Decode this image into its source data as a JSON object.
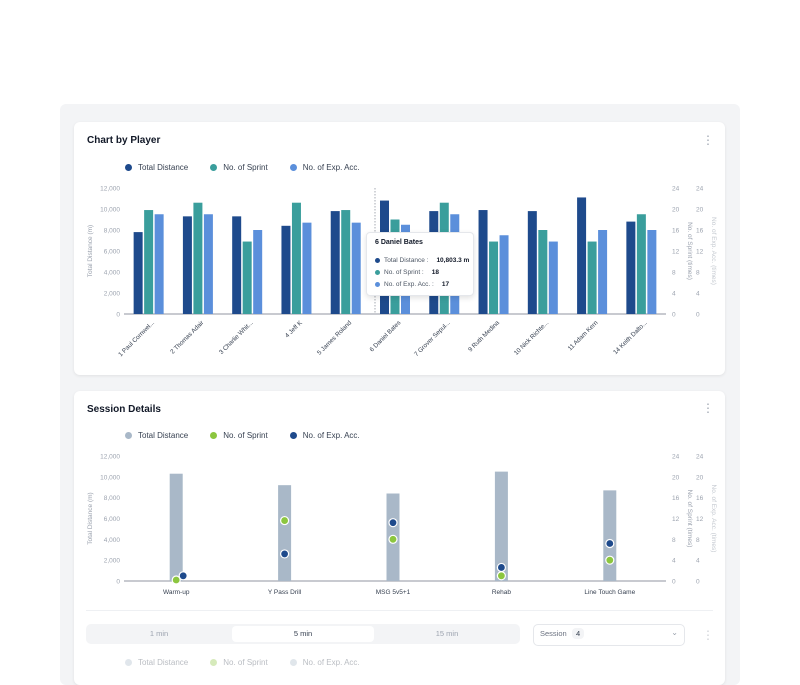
{
  "chart_data": [
    {
      "type": "bar",
      "title": "Chart by Player",
      "legend_position": "top-left",
      "categories": [
        "1 Paul Cornwel...",
        "2 Thomas Adair",
        "3 Charlie Whit...",
        "4 Jeff K",
        "5 James Roland",
        "6 Daniel Bates",
        "7 Grover Sepul...",
        "9 Ruth Medina",
        "10 Nick Richte...",
        "11 Adam Kern",
        "14 Keith Dalto..."
      ],
      "series": [
        {
          "name": "Total Distance",
          "axis": "left",
          "color": "#1e4a8c",
          "values": [
            7800,
            9300,
            9300,
            8400,
            9800,
            10803.3,
            9800,
            9900,
            9800,
            11100,
            8800
          ]
        },
        {
          "name": "No. of Sprint",
          "axis": "right",
          "color": "#3a9e9c",
          "values": [
            19.8,
            21.2,
            13.8,
            21.2,
            19.8,
            18,
            21.2,
            13.8,
            16,
            13.8,
            19
          ]
        },
        {
          "name": "No. of Exp. Acc.",
          "axis": "right",
          "color": "#5b8fdb",
          "values": [
            19,
            19,
            16,
            17.4,
            17.4,
            17,
            19,
            15,
            13.8,
            16,
            16
          ]
        }
      ],
      "ylabel": "Total Distance (m)",
      "y2label": "No. of Sprint (times)",
      "y3label": "No. of Exp. Acc. (times)",
      "ylim": [
        0,
        12000
      ],
      "y2lim": [
        0,
        24
      ],
      "yticks": [
        "12,000",
        "10,000",
        "8,000",
        "6,000",
        "4,000",
        "2,000",
        "0"
      ],
      "y2ticks": [
        "24",
        "20",
        "16",
        "12",
        "8",
        "4",
        "0"
      ],
      "grid": false,
      "tooltip": {
        "title": "6 Daniel Bates",
        "rows": [
          {
            "label": "Total Distance :",
            "value": "10,803.3 m",
            "color": "#1e4a8c"
          },
          {
            "label": "No. of Sprint :",
            "value": "18",
            "color": "#3a9e9c"
          },
          {
            "label": "No. of Exp. Acc. :",
            "value": "17",
            "color": "#5b8fdb"
          }
        ]
      }
    },
    {
      "type": "bar",
      "title": "Session Details",
      "legend_position": "top-left",
      "categories": [
        "Warm-up",
        "Y Pass Drill",
        "MSG 5v5+1",
        "Rehab",
        "Line Touch Game"
      ],
      "series": [
        {
          "name": "Total Distance",
          "axis": "left",
          "color": "#a9b8c8",
          "values": [
            10300,
            9200,
            8400,
            10500,
            8700
          ]
        },
        {
          "name": "No. of Sprint",
          "axis": "right",
          "color": "#8cc63f",
          "values": [
            0,
            11.6,
            8,
            1,
            4
          ]
        },
        {
          "name": "No. of Exp. Acc.",
          "axis": "right",
          "color": "#1e4a8c",
          "values": [
            1,
            5.2,
            11.2,
            2.6,
            7.2
          ]
        }
      ],
      "ylabel": "Total Distance (m)",
      "y2label": "No. of Sprint (times)",
      "y3label": "No. of Exp. Acc. (times)",
      "ylim": [
        0,
        12000
      ],
      "y2lim": [
        0,
        24
      ],
      "yticks": [
        "12,000",
        "10,000",
        "8,000",
        "6,000",
        "4,000",
        "2,000",
        "0"
      ],
      "y2ticks": [
        "24",
        "20",
        "16",
        "12",
        "8",
        "4",
        "0"
      ],
      "grid": false
    }
  ],
  "controls": {
    "tabs": [
      "1 min",
      "5 min",
      "15 min"
    ],
    "active_tab": "5 min",
    "select_label": "Session",
    "select_count": "4",
    "legend": [
      "Total Distance",
      "No. of Sprint",
      "No. of Exp. Acc."
    ]
  },
  "icons": {
    "menu": "kebab-menu-icon",
    "dropdown": "chevron-down-icon"
  }
}
